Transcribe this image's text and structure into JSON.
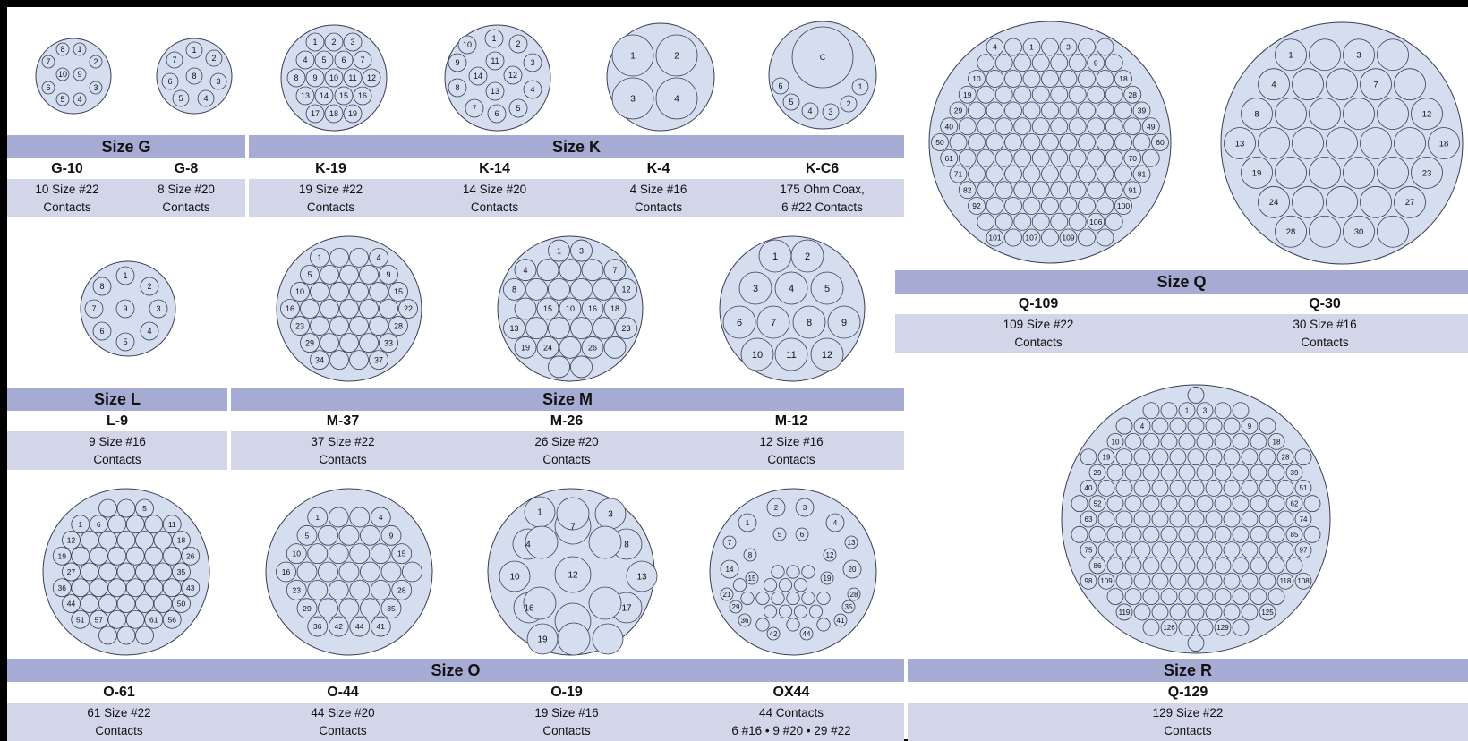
{
  "style": {
    "face": "#d5deef",
    "stroke": "#3a3d52",
    "band": "#a6abd3",
    "row": "#d3d6e9",
    "frame": "#000000"
  },
  "groups": {
    "g": "Size G",
    "k": "Size K",
    "q": "Size Q",
    "l": "Size L",
    "m": "Size M",
    "o": "Size O",
    "r": "Size R"
  },
  "connectors": {
    "g10": {
      "code": "G-10",
      "line1": "10 Size #22",
      "line2": "Contacts",
      "labels": [
        "8",
        "1",
        "7",
        "2",
        "10",
        "9",
        "6",
        "3",
        "5",
        "4"
      ]
    },
    "g8": {
      "code": "G-8",
      "line1": "8 Size #20",
      "line2": "Contacts",
      "labels": [
        "1",
        "7",
        "2",
        "6",
        "8",
        "3",
        "5",
        "4"
      ]
    },
    "k19": {
      "code": "K-19",
      "line1": "19 Size #22",
      "line2": "Contacts",
      "labels": [
        "1",
        "2",
        "3",
        "4",
        "5",
        "6",
        "7",
        "8",
        "9",
        "10",
        "11",
        "12",
        "13",
        "14",
        "15",
        "16",
        "17",
        "18",
        "19"
      ]
    },
    "k14": {
      "code": "K-14",
      "line1": "14 Size #20",
      "line2": "Contacts",
      "labels": [
        "10",
        "1",
        "2",
        "9",
        "11",
        "3",
        "14",
        "12",
        "8",
        "13",
        "4",
        "7",
        "6",
        "5"
      ]
    },
    "k4": {
      "code": "K-4",
      "line1": "4 Size #16",
      "line2": "Contacts",
      "labels": [
        "1",
        "2",
        "3",
        "4"
      ]
    },
    "kc6": {
      "code": "K-C6",
      "line1": "175 Ohm Coax,",
      "line2": "6 #22 Contacts",
      "labels": [
        "C",
        "1",
        "2",
        "3",
        "4",
        "5",
        "6"
      ]
    },
    "q109": {
      "code": "Q-109",
      "line1": "109 Size #22",
      "line2": "Contacts",
      "labels": [
        "1",
        "3",
        "4",
        "9",
        "10",
        "18",
        "19",
        "28",
        "29",
        "39",
        "40",
        "49",
        "50",
        "60",
        "61",
        "70",
        "71",
        "81",
        "82",
        "91",
        "92",
        "100",
        "101",
        "106",
        "107",
        "109"
      ]
    },
    "q30": {
      "code": "Q-30",
      "line1": "30 Size #16",
      "line2": "Contacts",
      "labels": [
        "1",
        "3",
        "4",
        "7",
        "8",
        "12",
        "13",
        "18",
        "19",
        "23",
        "24",
        "27",
        "28",
        "30"
      ]
    },
    "l9": {
      "code": "L-9",
      "line1": "9 Size #16",
      "line2": "Contacts",
      "labels": [
        "1",
        "8",
        "2",
        "7",
        "9",
        "3",
        "6",
        "4",
        "5"
      ]
    },
    "m37": {
      "code": "M-37",
      "line1": "37 Size #22",
      "line2": "Contacts",
      "labels": [
        "1",
        "4",
        "5",
        "9",
        "10",
        "15",
        "16",
        "22",
        "23",
        "28",
        "29",
        "33",
        "34",
        "37"
      ]
    },
    "m26": {
      "code": "M-26",
      "line1": "26 Size #20",
      "line2": "Contacts",
      "labels": [
        "1",
        "3",
        "4",
        "7",
        "8",
        "10",
        "12",
        "13",
        "15",
        "16",
        "18",
        "19",
        "23",
        "24",
        "26"
      ]
    },
    "m12": {
      "code": "M-12",
      "line1": "12 Size #16",
      "line2": "Contacts",
      "labels": [
        "1",
        "2",
        "3",
        "4",
        "5",
        "6",
        "7",
        "8",
        "9",
        "10",
        "11",
        "12"
      ]
    },
    "o61": {
      "code": "O-61",
      "line1": "61 Size #22",
      "line2": "Contacts",
      "labels": [
        "1",
        "5",
        "6",
        "11",
        "12",
        "18",
        "19",
        "26",
        "27",
        "35",
        "36",
        "43",
        "44",
        "50",
        "51",
        "56",
        "57",
        "61"
      ]
    },
    "o44": {
      "code": "O-44",
      "line1": "44 Size #20",
      "line2": "Contacts",
      "labels": [
        "1",
        "4",
        "5",
        "9",
        "10",
        "15",
        "16",
        "23",
        "28",
        "29",
        "35",
        "36",
        "41",
        "42",
        "44"
      ]
    },
    "o19": {
      "code": "O-19",
      "line1": "19 Size #16",
      "line2": "Contacts",
      "labels": [
        "1",
        "3",
        "4",
        "7",
        "8",
        "10",
        "12",
        "13",
        "16",
        "17",
        "19"
      ]
    },
    "ox44": {
      "code": "OX44",
      "line1": "44 Contacts",
      "line2": "6 #16 • 9 #20 • 29 #22",
      "labels": [
        "1",
        "2",
        "3",
        "4",
        "5",
        "6",
        "7",
        "8",
        "12",
        "13",
        "14",
        "15",
        "19",
        "20",
        "21",
        "28",
        "29",
        "35",
        "36",
        "41",
        "42",
        "44"
      ]
    },
    "q129": {
      "code": "Q-129",
      "line1": "129 Size #22",
      "line2": "Contacts",
      "labels": [
        "1",
        "3",
        "4",
        "9",
        "10",
        "18",
        "19",
        "28",
        "29",
        "39",
        "40",
        "51",
        "52",
        "62",
        "63",
        "74",
        "75",
        "85",
        "86",
        "97",
        "98",
        "108",
        "109",
        "118",
        "119",
        "125",
        "126",
        "129"
      ]
    }
  }
}
